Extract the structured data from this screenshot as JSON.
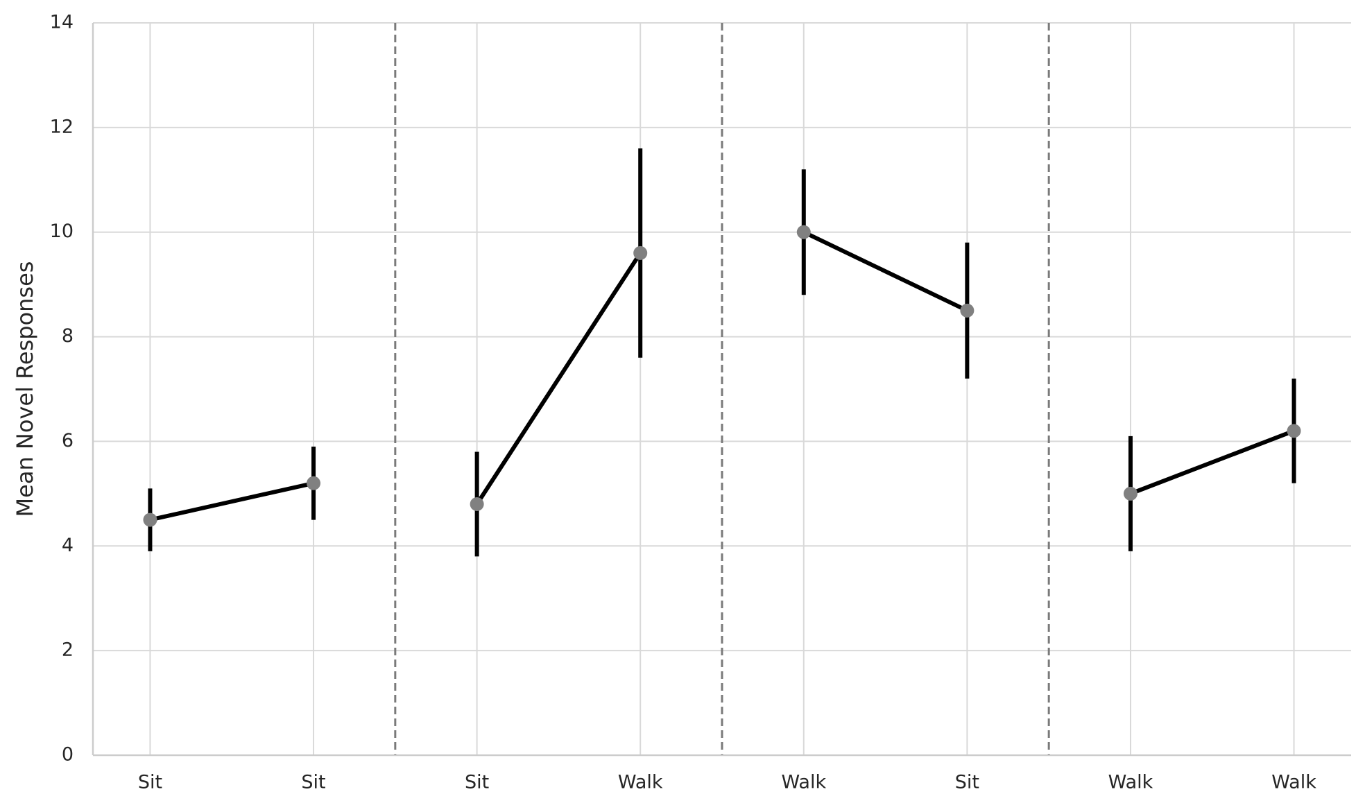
{
  "chart_data": {
    "type": "pointplot",
    "y_label": "Mean Novel Responses",
    "categories": [
      "Sit",
      "Sit",
      "Sit",
      "Walk",
      "Walk",
      "Sit",
      "Walk",
      "Walk"
    ],
    "series": [
      {
        "color": "#808080",
        "line_color": "#000000",
        "values": [
          4.5,
          5.2,
          4.8,
          9.6,
          10.0,
          8.5,
          5.0,
          6.2
        ],
        "ci_low": [
          3.9,
          4.5,
          3.8,
          7.6,
          8.8,
          7.2,
          3.9,
          5.2
        ],
        "ci_high": [
          5.1,
          5.9,
          5.8,
          11.6,
          11.2,
          9.8,
          6.1,
          7.2
        ]
      }
    ],
    "group_size": 2,
    "ylim": [
      0,
      14
    ],
    "yticks": [
      0,
      2,
      4,
      6,
      8,
      10,
      12,
      14
    ],
    "grid": true
  }
}
